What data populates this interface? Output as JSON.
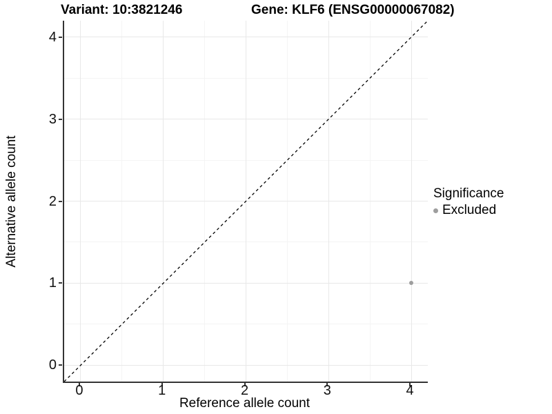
{
  "titles": {
    "variant": "Variant: 10:3821246",
    "gene": "Gene: KLF6 (ENSG00000067082)"
  },
  "chart_data": {
    "type": "scatter",
    "title_left": "Variant: 10:3821246",
    "title_right": "Gene: KLF6 (ENSG00000067082)",
    "xlabel": "Reference allele count",
    "ylabel": "Alternative allele count",
    "xlim": [
      -0.2,
      4.2
    ],
    "ylim": [
      -0.2,
      4.2
    ],
    "x_ticks": [
      0,
      1,
      2,
      3,
      4
    ],
    "y_ticks": [
      0,
      1,
      2,
      3,
      4
    ],
    "x_minor_ticks": [
      0.5,
      1.5,
      2.5,
      3.5
    ],
    "y_minor_ticks": [
      0.5,
      1.5,
      2.5,
      3.5
    ],
    "grid": "on",
    "reference_line": {
      "type": "identity y=x",
      "style": "dashed",
      "color": "#000000"
    },
    "series": [
      {
        "name": "Excluded",
        "color": "#9e9e9e",
        "points": [
          {
            "x": 4,
            "y": 1
          }
        ]
      }
    ],
    "legend": {
      "title": "Significance",
      "position": "right",
      "items": [
        {
          "label": "Excluded",
          "color": "#9e9e9e"
        }
      ]
    },
    "colors": {
      "axis_line": "#333333",
      "grid_major": "#e8e8e8",
      "grid_minor": "#f4f4f4",
      "point_gray": "#9e9e9e"
    }
  }
}
